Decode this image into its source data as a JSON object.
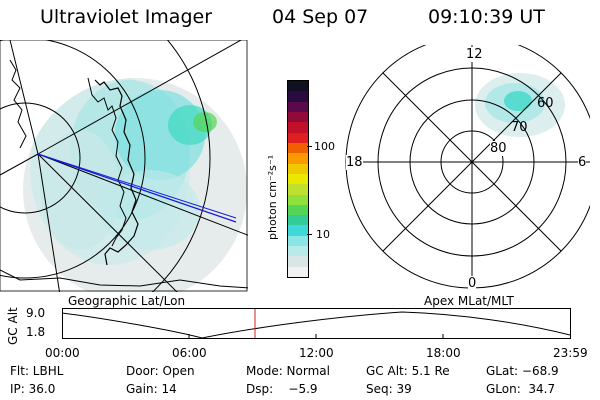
{
  "header": {
    "instrument": "Ultraviolet Imager",
    "date": "04 Sep 07",
    "time": "09:10:39 UT"
  },
  "colorbar": {
    "label": "photon cm⁻²s⁻¹",
    "ticks": [
      "100",
      "10"
    ],
    "colors": [
      "#f2f2f2",
      "#d8e6e6",
      "#b8eaea",
      "#8ae6e6",
      "#40d8d8",
      "#33cc99",
      "#55d455",
      "#8fe03a",
      "#c0e030",
      "#e8e800",
      "#f0c800",
      "#f89a00",
      "#f06000",
      "#e02020",
      "#c0102a",
      "#900a3a",
      "#5a0a4a",
      "#2a0a40",
      "#101020"
    ]
  },
  "polar": {
    "mlt_labels": {
      "top": "12",
      "left": "18",
      "right": "6",
      "bottom": "0"
    },
    "lat_labels": [
      "60",
      "70",
      "80"
    ]
  },
  "altitude_plot": {
    "left_label": "Geographic Lat/Lon",
    "right_label": "Apex MLat/MLT",
    "ylabel": "GC Alt",
    "y_ticks": [
      "9.0",
      "1.8"
    ],
    "x_ticks": [
      "00:00",
      "06:00",
      "12:00",
      "18:00",
      "23:59"
    ]
  },
  "info": {
    "flt": "Flt: LBHL",
    "door": "Door: Open",
    "mode": "Mode: Normal",
    "gc_alt": "GC Alt: 5.1 Re",
    "glat": "GLat: −68.9",
    "ip": "IP: 36.0",
    "gain": "Gain: 14",
    "dsp": "Dsp:    −5.9",
    "seq": "Seq: 39",
    "glon": "GLon:  34.7"
  }
}
